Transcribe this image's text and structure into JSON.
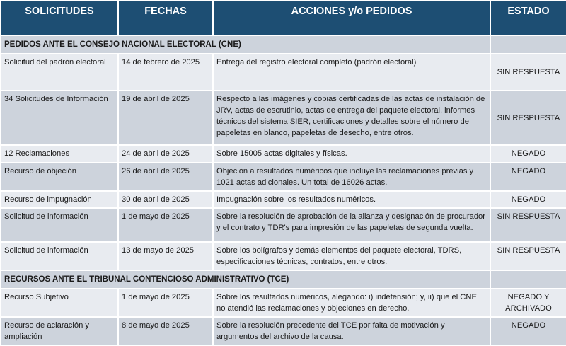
{
  "headers": [
    "SOLICITUDES",
    "FECHAS",
    "ACCIONES y/o PEDIDOS",
    "ESTADO"
  ],
  "sections": [
    {
      "title": "PEDIDOS ANTE EL CONSEJO NACIONAL  ELECTORAL (CNE)",
      "rows": [
        {
          "solicitud": "Solicitud del padrón electoral",
          "fecha": "14 de febrero de 2025",
          "accion": "Entrega del registro electoral completo (padrón electoral)",
          "estado": "SIN RESPUESTA"
        },
        {
          "solicitud": "34 Solicitudes  de Información",
          "fecha": "19 de abril de 2025",
          "accion": "Respecto a las imágenes y copias certificadas de las actas de instalación de JRV, actas de escrutinio, actas de entrega del paquete electoral, informes técnicos del sistema SIER, certificaciones y detalles sobre el número de papeletas en blanco,  papeletas de desecho, entre otros.",
          "estado": "SIN RESPUESTA"
        },
        {
          "solicitud": "12 Reclamaciones",
          "fecha": "24 de abril de 2025",
          "accion": "Sobre 15005 actas digitales y físicas.",
          "estado": "NEGADO"
        },
        {
          "solicitud": "Recurso de objeción",
          "fecha": "26 de abril de 2025",
          "accion": "Objeción a resultados numéricos que incluye las reclamaciones previas y 1021 actas adicionales. Un total de 16026 actas.",
          "estado": "NEGADO"
        },
        {
          "solicitud": "Recurso de impugnación",
          "fecha": "30 de abril de 2025",
          "accion": "Impugnación sobre los resultados numéricos.",
          "estado": "NEGADO"
        },
        {
          "solicitud": "Solicitud de información",
          "fecha": "1 de mayo de 2025",
          "accion": "Sobre la resolución de aprobación de la alianza y designación de procurador y el contrato y TDR's para impresión de las papeletas de segunda vuelta.",
          "estado": "SIN RESPUESTA"
        },
        {
          "solicitud": "Solicitud de información",
          "fecha": "13 de mayo de 2025",
          "accion": "Sobre los bolígrafos y demás elementos del paquete electoral, TDRS, especificaciones técnicas, contratos, entre otros.",
          "estado": "SIN RESPUESTA"
        }
      ]
    },
    {
      "title": "RECURSOS ANTE EL TRIBUNAL CONTENCIOSO ADMINISTRATIVO (TCE)",
      "rows": [
        {
          "solicitud": "Recurso Subjetivo",
          "fecha": "1 de mayo de 2025",
          "accion": "Sobre los resultados numéricos, alegando: i) indefensión; y, ii) que el CNE no atendió las reclamaciones y objeciones en derecho.",
          "estado": "NEGADO Y ARCHIVADO"
        },
        {
          "solicitud": "Recurso de aclaración y ampliación",
          "fecha": "8 de mayo de 2025",
          "accion": "Sobre la resolución precedente del TCE por falta de motivación y argumentos del archivo de la causa.",
          "estado": "NEGADO"
        }
      ]
    }
  ],
  "colors": {
    "header_bg": "#1d4e73",
    "row_light": "#e8ebf0",
    "row_dark": "#cdd3dc"
  }
}
